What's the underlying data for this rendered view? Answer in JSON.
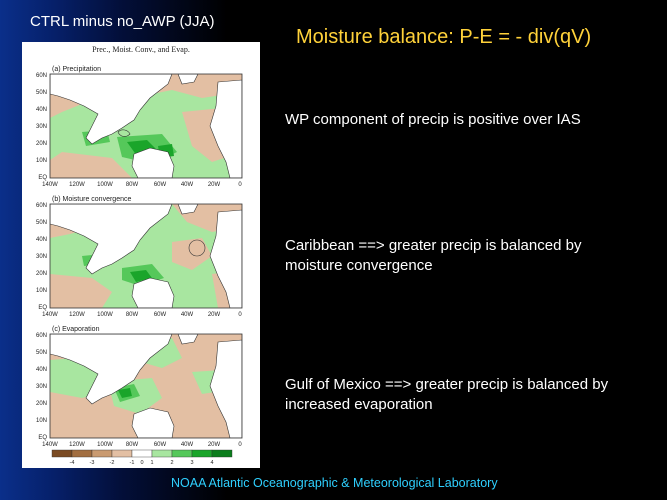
{
  "slide": {
    "left_title": "CTRL minus no_AWP (JJA)",
    "main_title": "Moisture balance:  P-E = - div(qV)",
    "bullets": [
      "WP component of  precip is positive over IAS",
      "Caribbean ==> greater precip is balanced by moisture convergence",
      "Gulf of Mexico ==> greater precip is balanced by increased evaporation"
    ],
    "footer": "NOAA Atlantic Oceanographic & Meteorological Laboratory"
  },
  "figure": {
    "header": "Prec., Moist. Conv., and Evap.",
    "panels": [
      {
        "label": "(a) Precipitation"
      },
      {
        "label": "(b) Moisture convergence"
      },
      {
        "label": "(c) Evaporation"
      }
    ],
    "lat_ticks": [
      "60N",
      "50N",
      "40N",
      "30N",
      "20N",
      "10N",
      "EQ"
    ],
    "lon_ticks": [
      "140W",
      "120W",
      "100W",
      "80W",
      "60W",
      "40W",
      "20W",
      "0"
    ],
    "colorbar_ticks": [
      "-4",
      "-3",
      "-2",
      "-1",
      "0",
      "1",
      "2",
      "3",
      "4"
    ],
    "colors": {
      "negative": "#e3bfa3",
      "positive_light": "#a8e6a0",
      "positive_mid": "#55c85a",
      "positive_strong": "#1aa52a",
      "land": "#ffffff"
    }
  }
}
